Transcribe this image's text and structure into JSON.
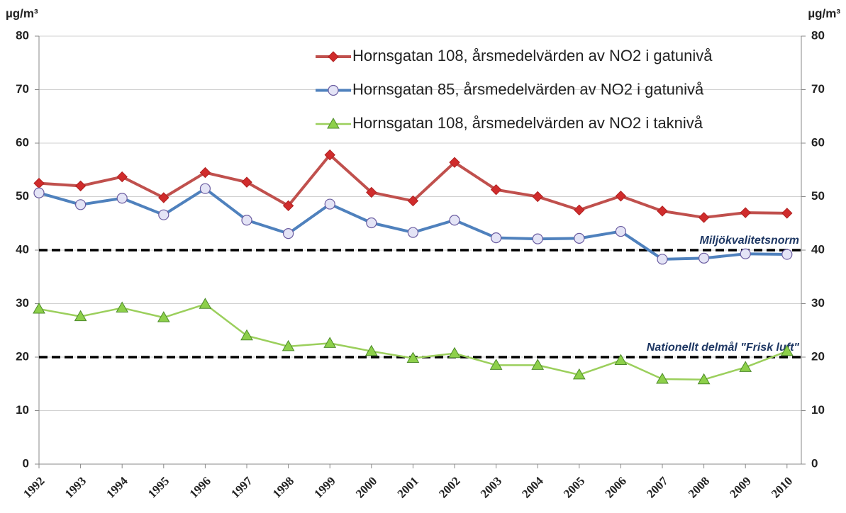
{
  "chart_data": {
    "type": "line",
    "y_label": "µg/m³",
    "y2_label": "µg/m³",
    "categories": [
      "1992",
      "1993",
      "1994",
      "1995",
      "1996",
      "1997",
      "1998",
      "1999",
      "2000",
      "2001",
      "2002",
      "2003",
      "2004",
      "2005",
      "2006",
      "2007",
      "2008",
      "2009",
      "2010"
    ],
    "series": [
      {
        "name": "Hornsgatan 108, årsmedelvärden av NO2 i gatunivå",
        "color": "#c0504d",
        "marker": "diamond",
        "values": [
          52.5,
          52,
          53.7,
          49.8,
          54.5,
          52.7,
          48.3,
          57.8,
          50.8,
          49.2,
          56.4,
          51.3,
          50,
          47.5,
          50.1,
          47.3,
          46.1,
          47,
          46.9
        ]
      },
      {
        "name": "Hornsgatan 85, årsmedelvärden av NO2 i gatunivå",
        "color": "#4f81bd",
        "marker": "circle",
        "values": [
          50.7,
          48.5,
          49.7,
          46.6,
          51.5,
          45.6,
          43.1,
          48.6,
          45.1,
          43.3,
          45.6,
          42.3,
          42.1,
          42.2,
          43.5,
          38.3,
          38.5,
          39.3,
          39.2
        ]
      },
      {
        "name": "Hornsgatan 108, årsmedelvärden av NO2 i taknivå",
        "color": "#9bcf5c",
        "marker": "triangle",
        "values": [
          29,
          27.6,
          29.2,
          27.4,
          29.9,
          24,
          22,
          22.6,
          21.1,
          19.8,
          20.7,
          18.5,
          18.5,
          16.7,
          19.4,
          15.9,
          15.8,
          18.1,
          21.1
        ]
      }
    ],
    "reference_lines": [
      {
        "value": 40,
        "label": "Miljökvalitetsnorm"
      },
      {
        "value": 20,
        "label": "Nationellt delmål \"Frisk luft\""
      }
    ],
    "ylim": [
      0,
      80
    ],
    "yticks": [
      0,
      10,
      20,
      30,
      40,
      50,
      60,
      70,
      80
    ],
    "y2lim": [
      0,
      80
    ],
    "y2ticks": [
      0,
      10,
      20,
      30,
      40,
      50,
      60,
      70,
      80
    ],
    "grid": true,
    "legend": "top-right"
  }
}
